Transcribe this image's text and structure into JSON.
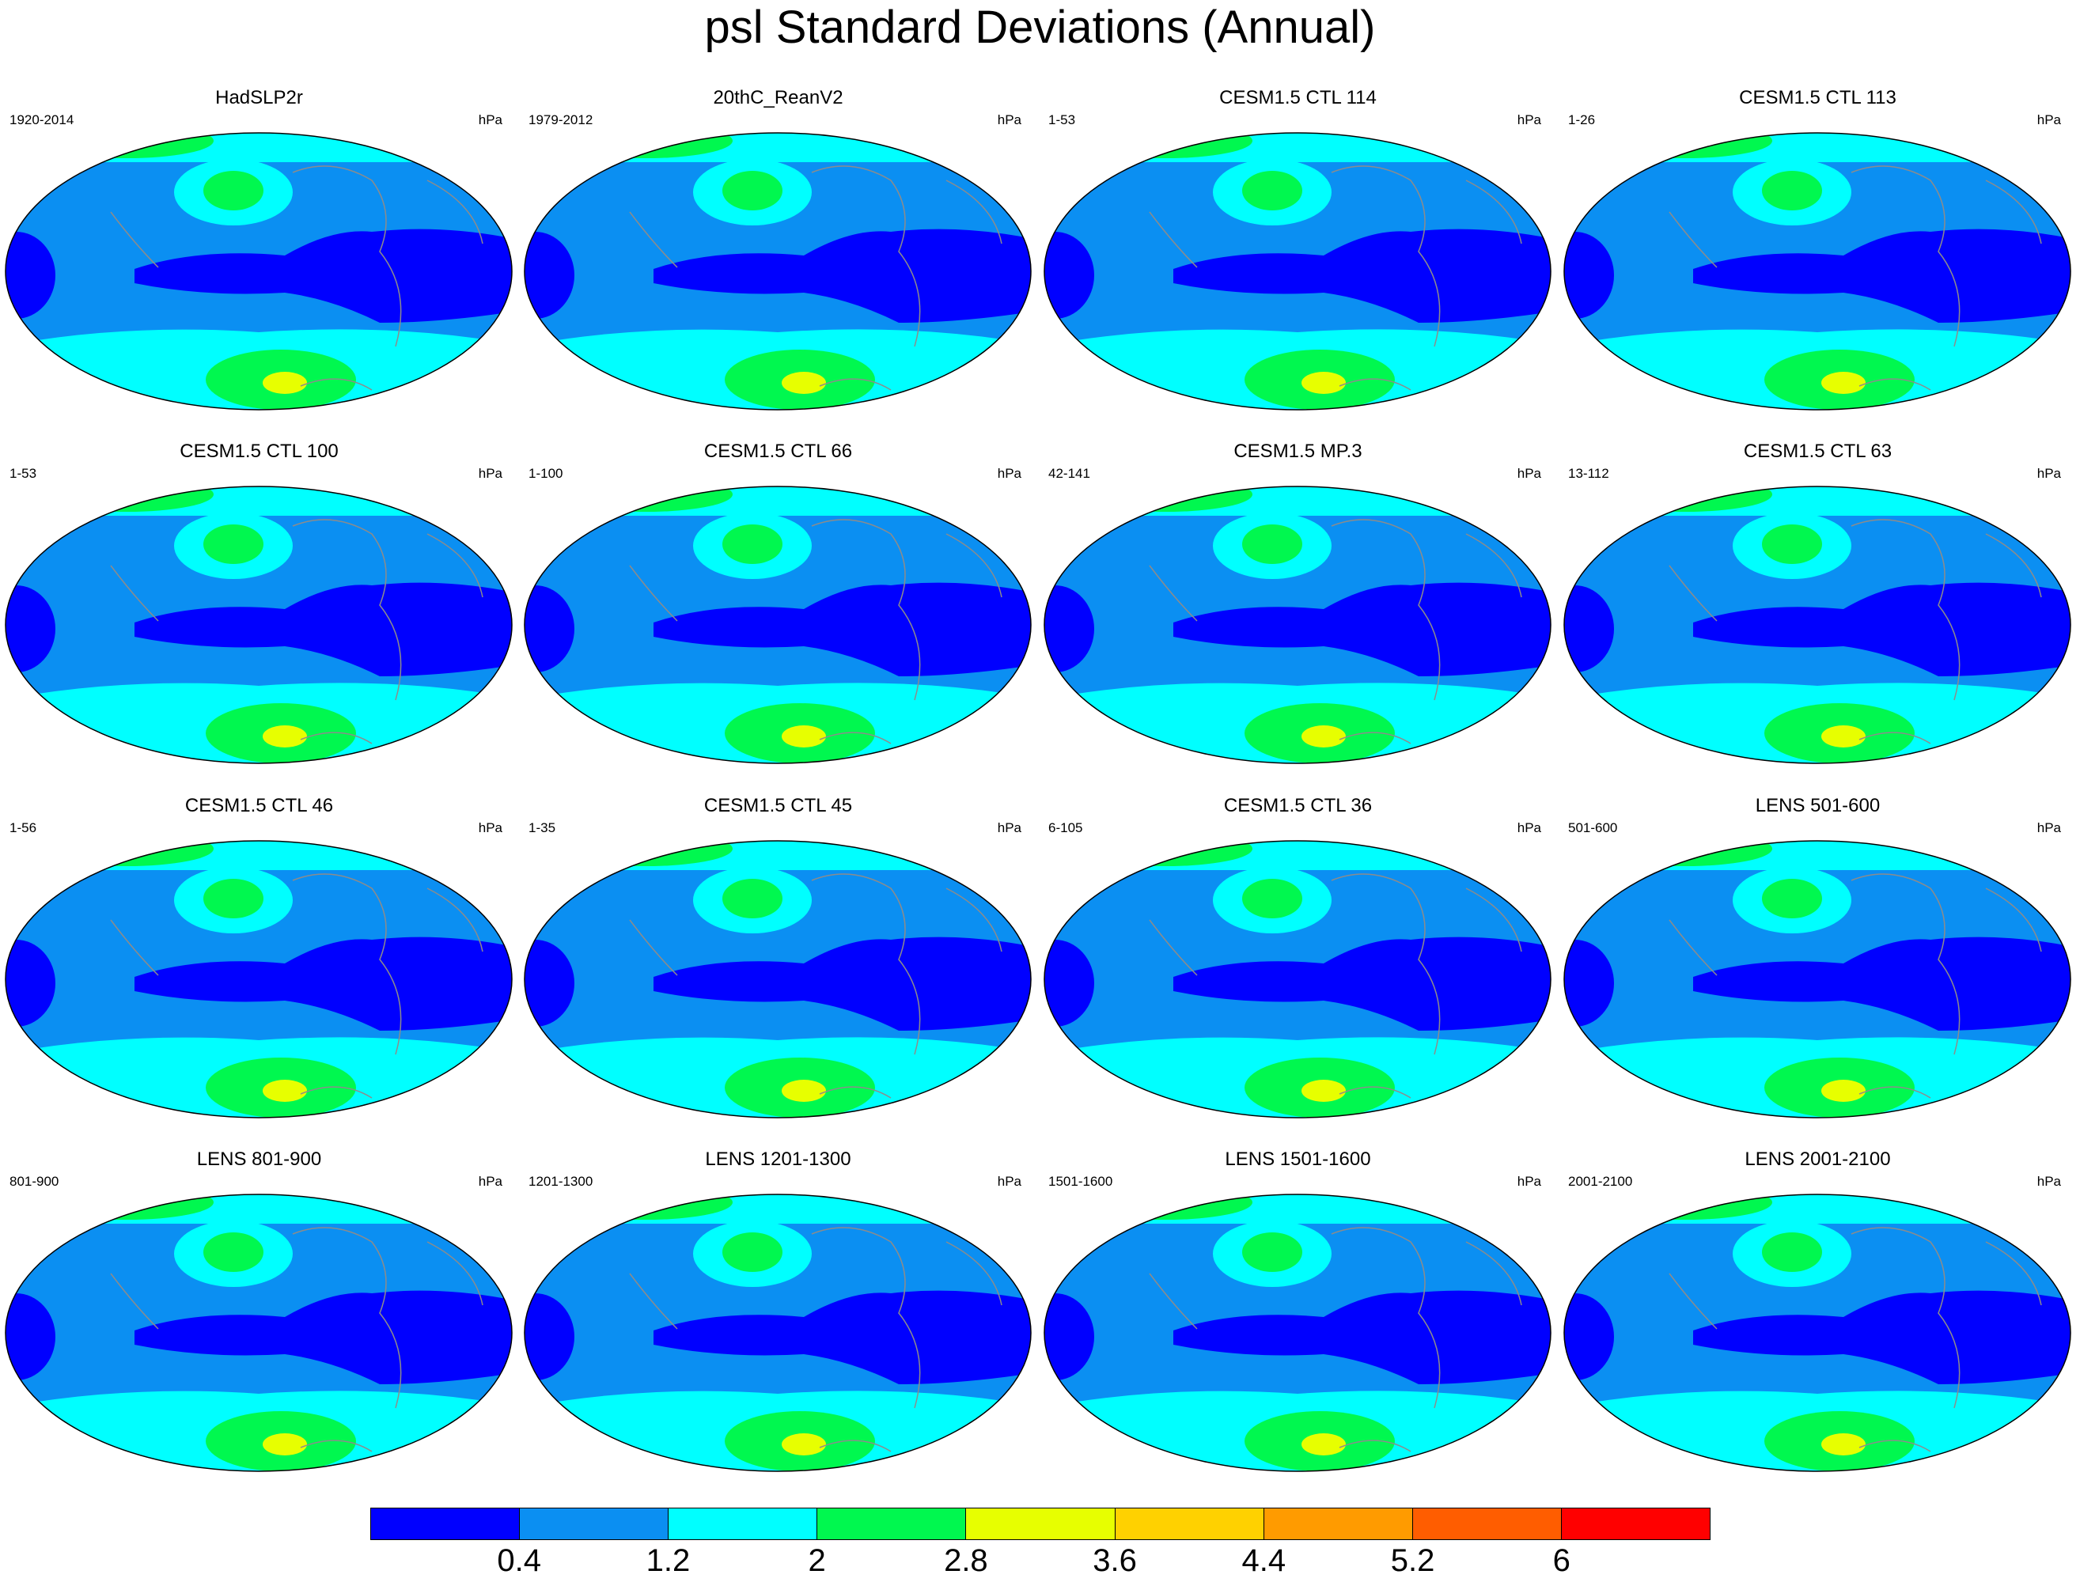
{
  "title": "psl Standard Deviations (Annual)",
  "unit": "hPa",
  "panels": [
    {
      "title": "HadSLP2r",
      "range": "1920-2014"
    },
    {
      "title": "20thC_ReanV2",
      "range": "1979-2012"
    },
    {
      "title": "CESM1.5 CTL 114",
      "range": "1-53"
    },
    {
      "title": "CESM1.5 CTL 113",
      "range": "1-26"
    },
    {
      "title": "CESM1.5 CTL 100",
      "range": "1-53"
    },
    {
      "title": "CESM1.5 CTL 66",
      "range": "1-100"
    },
    {
      "title": "CESM1.5 MP.3",
      "range": "42-141"
    },
    {
      "title": "CESM1.5 CTL 63",
      "range": "13-112"
    },
    {
      "title": "CESM1.5 CTL 46",
      "range": "1-56"
    },
    {
      "title": "CESM1.5 CTL 45",
      "range": "1-35"
    },
    {
      "title": "CESM1.5 CTL 36",
      "range": "6-105"
    },
    {
      "title": "LENS 501-600",
      "range": "501-600"
    },
    {
      "title": "LENS 801-900",
      "range": "801-900"
    },
    {
      "title": "LENS 1201-1300",
      "range": "1201-1300"
    },
    {
      "title": "LENS 1501-1600",
      "range": "1501-1600"
    },
    {
      "title": "LENS 2001-2100",
      "range": "2001-2100"
    }
  ],
  "colorbar": {
    "colors": [
      "#0000ff",
      "#0b8ff2",
      "#00ffff",
      "#00f84f",
      "#e7ff00",
      "#ffd100",
      "#ff9b00",
      "#ff5d00",
      "#ff0000"
    ],
    "labels": [
      "0.4",
      "1.2",
      "2",
      "2.8",
      "3.6",
      "4.4",
      "5.2",
      "6"
    ]
  },
  "map_colors": {
    "low": "#0000ff",
    "mid": "#0b8ff2",
    "band": "#00ffff",
    "high": "#00f84f",
    "peak": "#e7ff00",
    "coast": "#8c8c8c"
  }
}
